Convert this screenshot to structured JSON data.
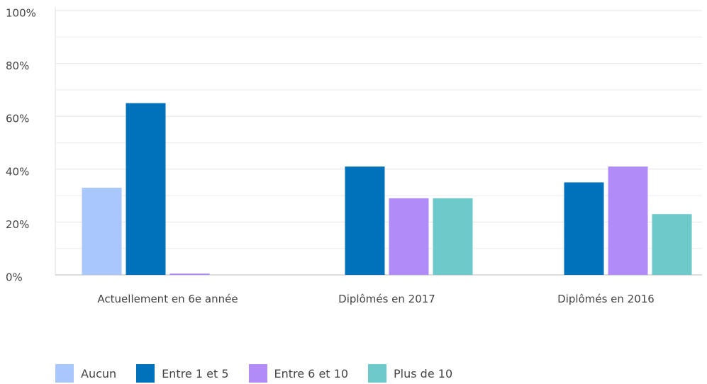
{
  "chart_data": {
    "type": "bar",
    "categories": [
      "Actuellement en 6e année",
      "Diplômés en 2017",
      "Diplômés en 2016"
    ],
    "series": [
      {
        "name": "Aucun",
        "color": "#a9c7fb",
        "values": [
          33,
          0,
          0
        ]
      },
      {
        "name": "Entre 1 et 5",
        "color": "#0072bc",
        "values": [
          65,
          41,
          35
        ]
      },
      {
        "name": "Entre 6 et 10",
        "color": "#b18cf9",
        "values": [
          0.5,
          29,
          41
        ]
      },
      {
        "name": "Plus de 10",
        "color": "#6dc9ca",
        "values": [
          0,
          29,
          23
        ]
      }
    ],
    "ylim": [
      0,
      100
    ],
    "yticks": [
      {
        "value": 0,
        "label": "0%"
      },
      {
        "value": 20,
        "label": "20%"
      },
      {
        "value": 40,
        "label": "40%"
      },
      {
        "value": 60,
        "label": "60%"
      },
      {
        "value": 80,
        "label": "80%"
      },
      {
        "value": 100,
        "label": "100%"
      }
    ],
    "minor_yticks": [
      10,
      30,
      50,
      70,
      90
    ],
    "grid": true,
    "legend": "bottom"
  }
}
